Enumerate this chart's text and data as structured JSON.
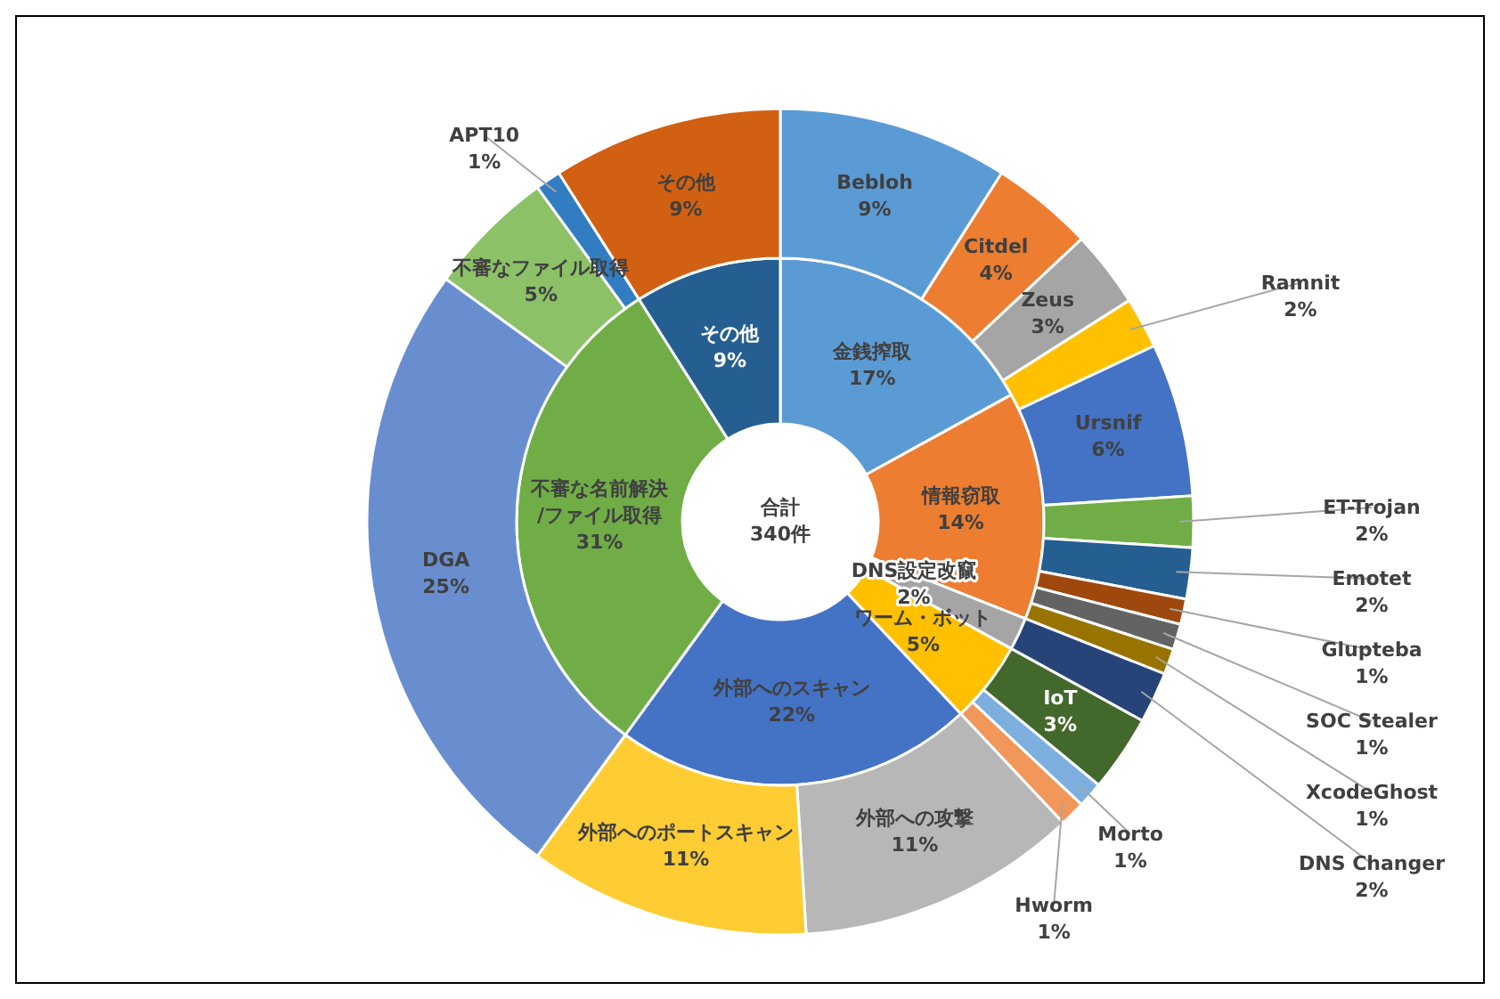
{
  "chart_data": [
    {
      "type": "donut",
      "title": "合計",
      "subtitle": "340件",
      "categories": [
        "金銭搾取",
        "情報窃取",
        "DNS設定改竄",
        "ワーム・ボット",
        "外部へのスキャン",
        "不審な名前解決\n/ファイル取得",
        "その他"
      ],
      "values": [
        17,
        14,
        2,
        5,
        22,
        31,
        9
      ],
      "value_labels": [
        "17%",
        "14%",
        "2%",
        "5%",
        "22%",
        "31%",
        "9%"
      ],
      "colors": [
        "#5b9bd5",
        "#ed7d31",
        "#a5a5a5",
        "#ffc000",
        "#4472c4",
        "#70ad47",
        "#255e91"
      ]
    },
    {
      "type": "donut",
      "categories": [
        "Bebloh",
        "Citdel",
        "Zeus",
        "Ramnit",
        "Ursnif",
        "ET-Trojan",
        "Emotet",
        "Glupteba",
        "SOC Stealer",
        "XcodeGhost",
        "DNS Changer",
        "IoT",
        "Morto",
        "Hworm",
        "外部への攻撃",
        "外部へのポートスキャン",
        "DGA",
        "不審なファイル取得",
        "APT10",
        "その他"
      ],
      "values": [
        9,
        4,
        3,
        2,
        6,
        2,
        2,
        1,
        1,
        1,
        2,
        3,
        1,
        1,
        11,
        11,
        25,
        5,
        1,
        9
      ],
      "value_labels": [
        "9%",
        "4%",
        "3%",
        "2%",
        "6%",
        "2%",
        "2%",
        "1%",
        "1%",
        "1%",
        "2%",
        "3%",
        "1%",
        "1%",
        "11%",
        "11%",
        "25%",
        "5%",
        "1%",
        "9%"
      ],
      "colors": [
        "#5b9bd5",
        "#ed7d31",
        "#a5a5a5",
        "#ffc000",
        "#4472c4",
        "#70ad47",
        "#255e91",
        "#9e480e",
        "#636363",
        "#997300",
        "#264478",
        "#43682b",
        "#7cafdd",
        "#f1975a",
        "#b7b7b7",
        "#ffcd33",
        "#698ed0",
        "#8cc168",
        "#327dc2",
        "#d26012"
      ]
    }
  ]
}
